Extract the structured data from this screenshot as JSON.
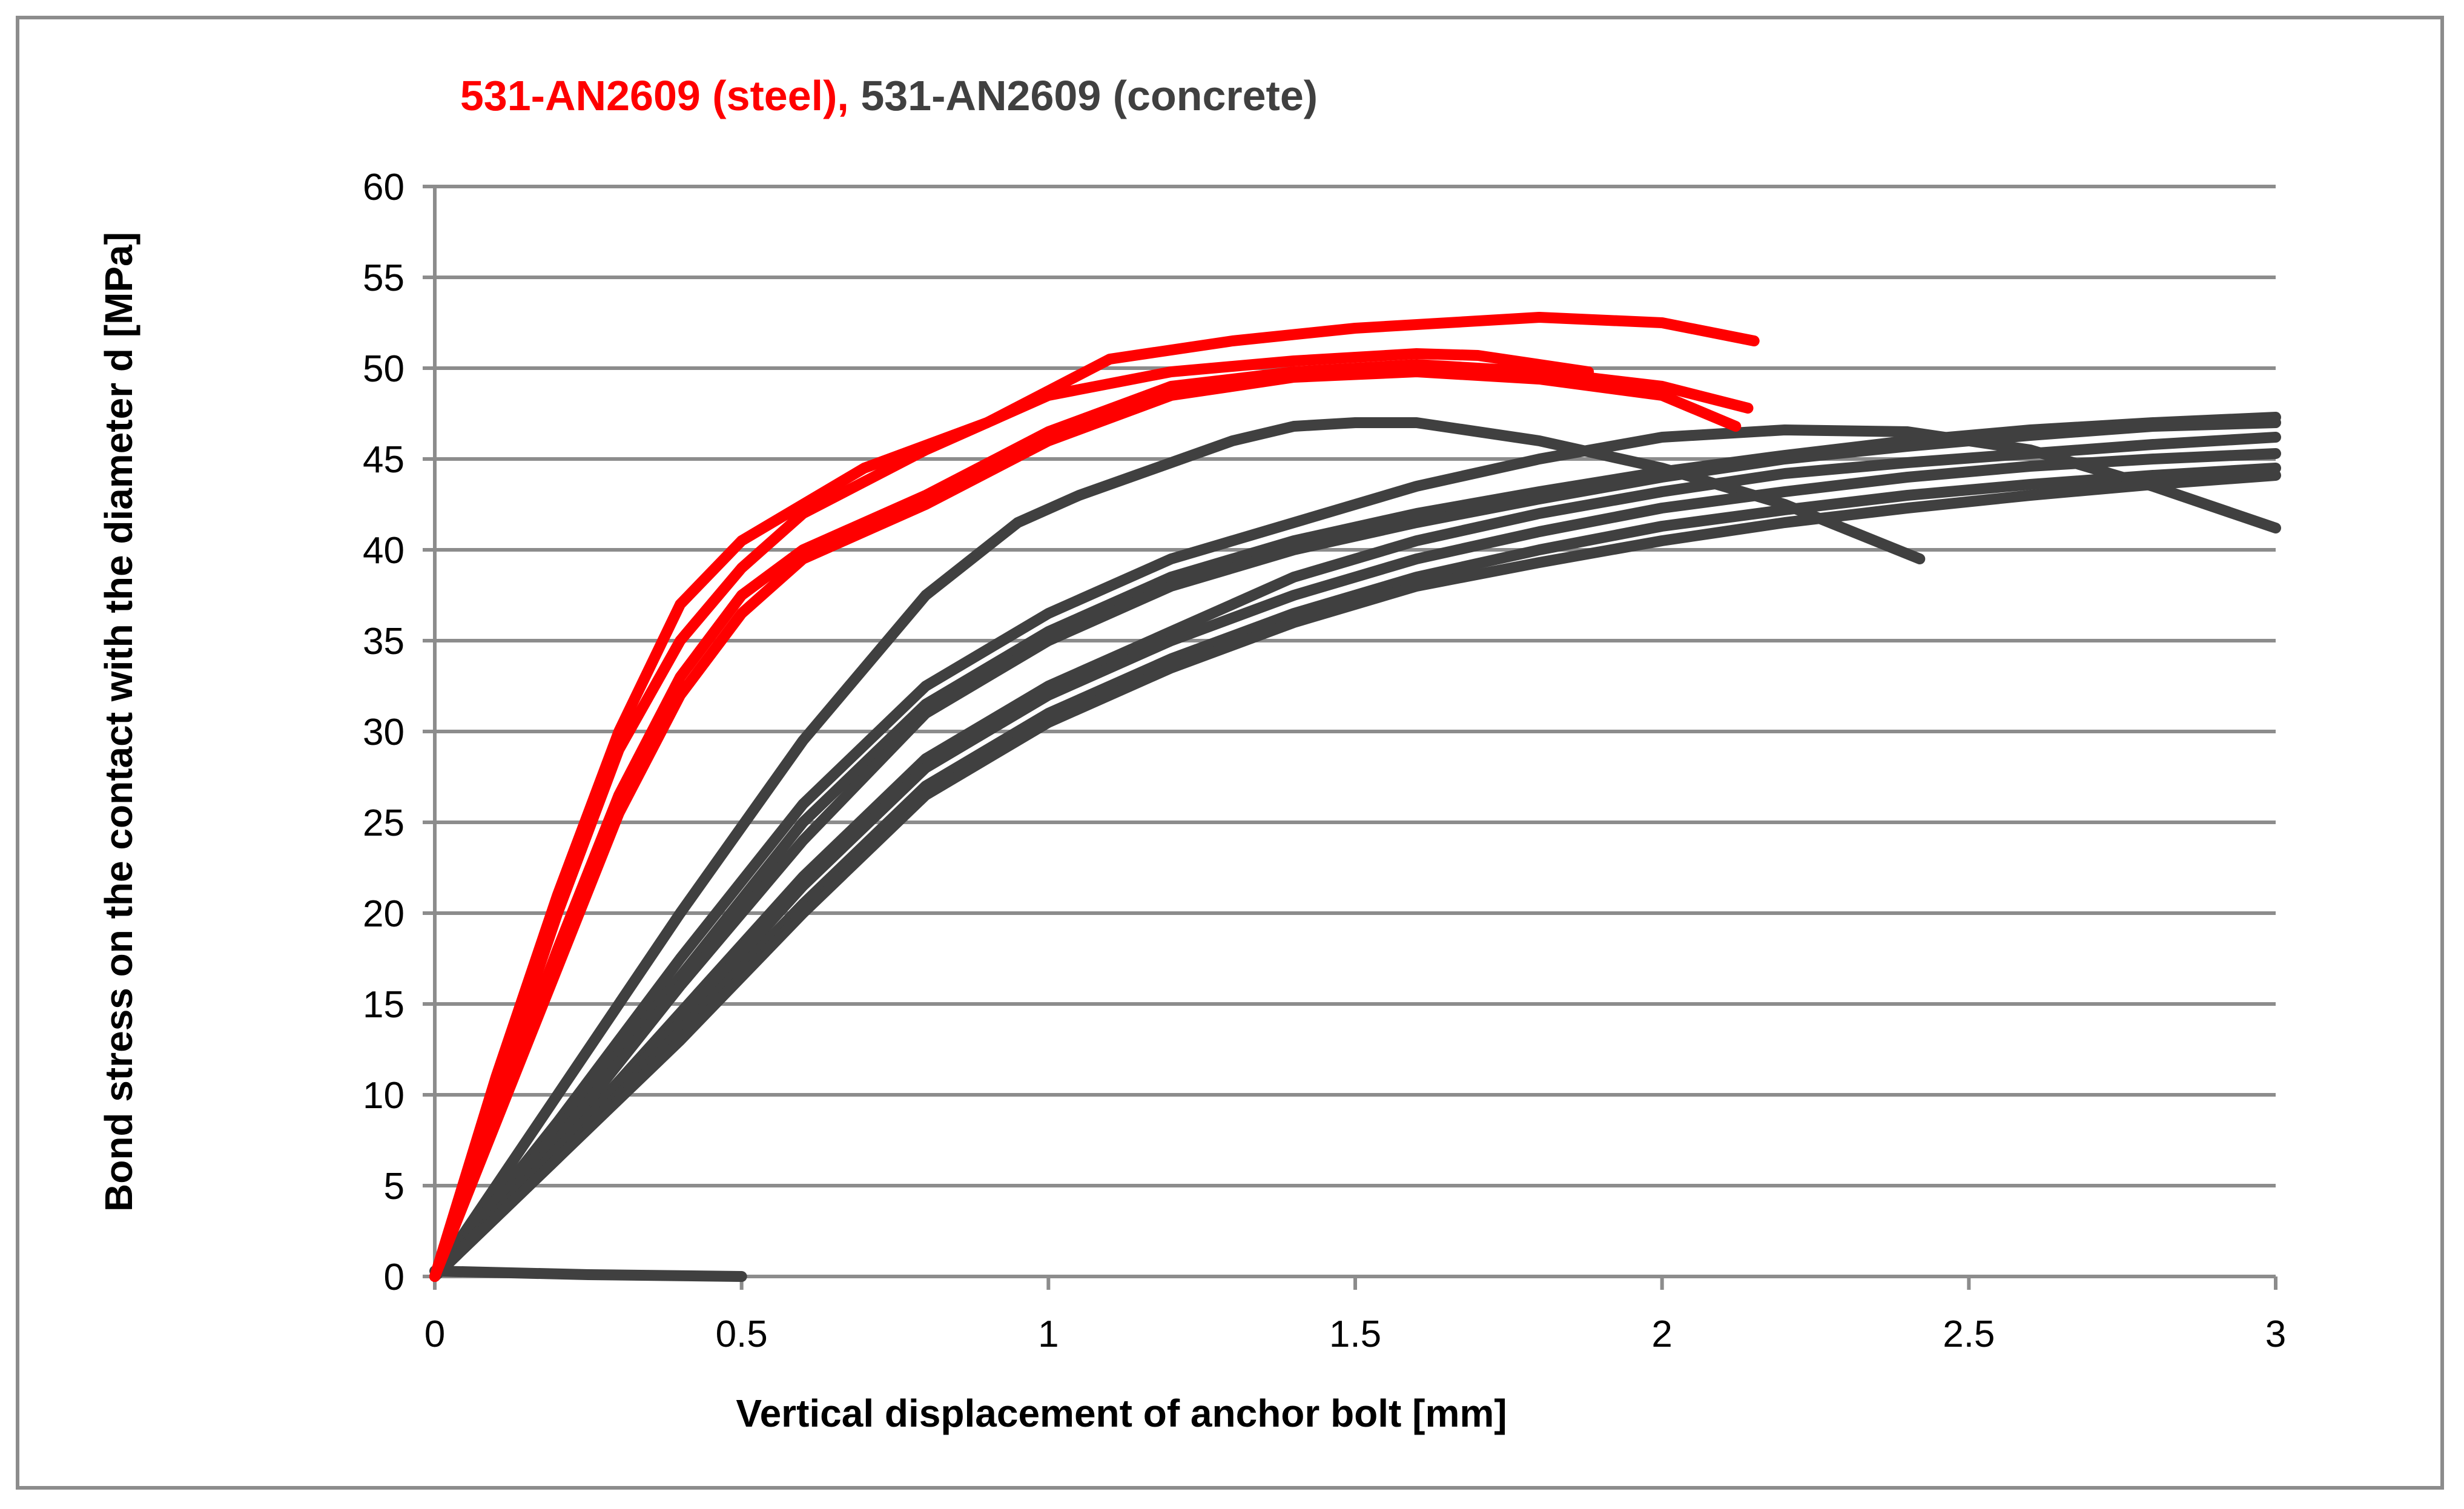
{
  "chart_data": {
    "type": "line",
    "title_parts": [
      {
        "text": "531-AN2609 (steel),",
        "color": "#ff0000"
      },
      {
        "text": " 531-AN2609 (concrete)",
        "color": "#404040"
      }
    ],
    "xlabel": "Vertical displacement of anchor bolt [mm]",
    "ylabel": "Bond stress on the contact with the diameter d [MPa]",
    "xlim": [
      0,
      3
    ],
    "ylim": [
      0,
      60
    ],
    "xticks": [
      0,
      0.5,
      1,
      1.5,
      2,
      2.5,
      3
    ],
    "xtick_labels": [
      "0",
      "0.5",
      "1",
      "1.5",
      "2",
      "2.5",
      "3"
    ],
    "yticks": [
      0,
      5,
      10,
      15,
      20,
      25,
      30,
      35,
      40,
      45,
      50,
      55,
      60
    ],
    "ytick_labels": [
      "0",
      "5",
      "10",
      "15",
      "20",
      "25",
      "30",
      "35",
      "40",
      "45",
      "50",
      "55",
      "60"
    ],
    "grid": "horizontal",
    "colors": {
      "steel": "#ff0000",
      "concrete": "#404040"
    },
    "series": [
      {
        "group": "steel",
        "x": [
          0,
          0.1,
          0.2,
          0.3,
          0.4,
          0.5,
          0.55,
          0.7,
          0.9,
          1.1,
          1.3,
          1.5,
          1.8,
          2.0,
          2.15
        ],
        "y": [
          0,
          11,
          21,
          30,
          37,
          40.5,
          41.5,
          44.5,
          47,
          50.5,
          51.5,
          52.2,
          52.8,
          52.5,
          51.5
        ]
      },
      {
        "group": "steel",
        "x": [
          0,
          0.1,
          0.2,
          0.3,
          0.4,
          0.5,
          0.6,
          0.8,
          1.0,
          1.2,
          1.4,
          1.6,
          1.7,
          1.88
        ],
        "y": [
          0,
          10,
          20,
          29,
          35,
          39,
          42,
          45.5,
          48.5,
          49.8,
          50.4,
          50.8,
          50.7,
          49.8
        ]
      },
      {
        "group": "steel",
        "x": [
          0,
          0.1,
          0.2,
          0.3,
          0.4,
          0.5,
          0.6,
          0.8,
          1.0,
          1.2,
          1.4,
          1.6,
          1.8,
          2.0,
          2.14
        ],
        "y": [
          0,
          9,
          18,
          26.5,
          33,
          37.5,
          40,
          43,
          46.5,
          49,
          49.8,
          50.2,
          49.8,
          49,
          47.8
        ]
      },
      {
        "group": "steel",
        "x": [
          0,
          0.1,
          0.2,
          0.3,
          0.4,
          0.5,
          0.6,
          0.8,
          1.0,
          1.2,
          1.4,
          1.6,
          1.8,
          2.0,
          2.12
        ],
        "y": [
          0,
          8.5,
          17,
          25.5,
          32,
          36.5,
          39.5,
          42.5,
          46,
          48.5,
          49.5,
          49.8,
          49.4,
          48.5,
          46.8
        ]
      },
      {
        "group": "concrete",
        "x": [
          0,
          0.2,
          0.4,
          0.6,
          0.8,
          0.95,
          1.05,
          1.2,
          1.3,
          1.4,
          1.5,
          1.6,
          1.8,
          2.0,
          2.2,
          2.42
        ],
        "y": [
          0,
          10,
          20,
          29.5,
          37.5,
          41.5,
          43,
          44.8,
          46,
          46.8,
          47,
          47,
          46,
          44.5,
          42.5,
          39.5
        ]
      },
      {
        "group": "concrete",
        "x": [
          0,
          0.2,
          0.4,
          0.6,
          0.8,
          1.0,
          1.2,
          1.4,
          1.6,
          1.8,
          2.0,
          2.2,
          2.4,
          2.6,
          2.8,
          3.0
        ],
        "y": [
          0,
          8.5,
          17.5,
          26,
          32.5,
          36.5,
          39.5,
          41.5,
          43.5,
          45,
          46.2,
          46.6,
          46.5,
          45.5,
          43.5,
          41.2
        ]
      },
      {
        "group": "concrete",
        "x": [
          0,
          0.2,
          0.4,
          0.6,
          0.8,
          1.0,
          1.2,
          1.4,
          1.6,
          1.8,
          2.0,
          2.2,
          2.4,
          2.6,
          2.8,
          3.0
        ],
        "y": [
          0,
          8,
          16.5,
          25,
          31.5,
          35.5,
          38.5,
          40.5,
          42,
          43.2,
          44.3,
          45.2,
          46,
          46.6,
          47,
          47.3
        ]
      },
      {
        "group": "concrete",
        "x": [
          0,
          0.2,
          0.4,
          0.6,
          0.8,
          1.0,
          1.2,
          1.4,
          1.6,
          1.8,
          2.0,
          2.2,
          2.4,
          2.6,
          2.8,
          3.0
        ],
        "y": [
          0,
          7.5,
          16,
          24,
          31,
          35,
          38,
          40,
          41.5,
          42.8,
          44,
          45,
          45.7,
          46.3,
          46.8,
          47
        ]
      },
      {
        "group": "concrete",
        "x": [
          0,
          0.2,
          0.4,
          0.6,
          0.8,
          1.0,
          1.2,
          1.4,
          1.6,
          1.8,
          2.0,
          2.2,
          2.4,
          2.6,
          2.8,
          3.0
        ],
        "y": [
          0,
          7,
          14.5,
          22,
          28.5,
          32.5,
          35.5,
          38.5,
          40.5,
          42,
          43.2,
          44.2,
          44.8,
          45.3,
          45.8,
          46.2
        ]
      },
      {
        "group": "concrete",
        "x": [
          0,
          0.2,
          0.4,
          0.6,
          0.8,
          1.0,
          1.2,
          1.4,
          1.6,
          1.8,
          2.0,
          2.2,
          2.4,
          2.6,
          2.8,
          3.0
        ],
        "y": [
          0,
          7,
          14,
          21.5,
          28,
          32,
          35,
          37.5,
          39.5,
          41,
          42.3,
          43.2,
          44,
          44.6,
          45,
          45.3
        ]
      },
      {
        "group": "concrete",
        "x": [
          0,
          0.2,
          0.4,
          0.6,
          0.8,
          1.0,
          1.2,
          1.4,
          1.6,
          1.8,
          2.0,
          2.2,
          2.4,
          2.6,
          2.8,
          3.0
        ],
        "y": [
          0,
          6.5,
          13.5,
          20.5,
          27,
          31,
          34,
          36.5,
          38.5,
          40,
          41.3,
          42.2,
          43,
          43.6,
          44.1,
          44.5
        ]
      },
      {
        "group": "concrete",
        "x": [
          0,
          0.2,
          0.4,
          0.6,
          0.8,
          1.0,
          1.2,
          1.4,
          1.6,
          1.8,
          2.0,
          2.2,
          2.4,
          2.6,
          2.8,
          3.0
        ],
        "y": [
          0,
          6.5,
          13,
          20,
          26.5,
          30.5,
          33.5,
          36,
          38,
          39.3,
          40.5,
          41.5,
          42.3,
          43,
          43.6,
          44.1
        ]
      },
      {
        "group": "concrete",
        "x": [
          0,
          0.25,
          0.5
        ],
        "y": [
          0.3,
          0.1,
          0
        ]
      }
    ]
  }
}
